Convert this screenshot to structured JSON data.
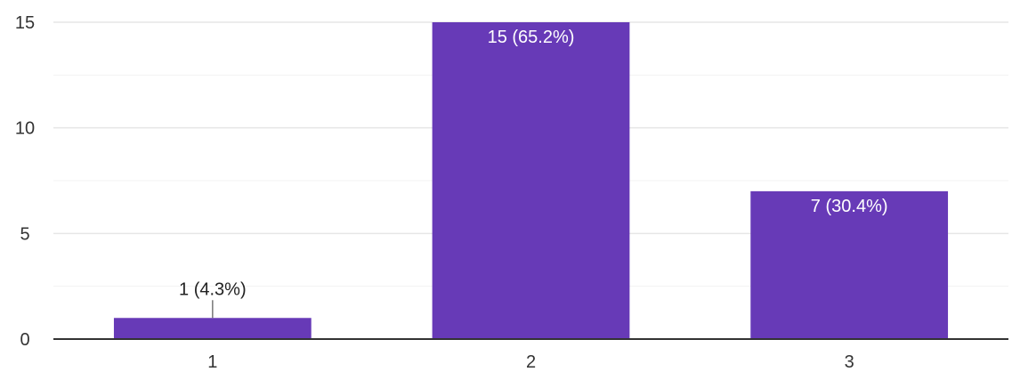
{
  "chart_data": {
    "type": "bar",
    "categories": [
      "1",
      "2",
      "3"
    ],
    "values": [
      1,
      15,
      7
    ],
    "data_labels": [
      "1 (4.3%)",
      "15 (65.2%)",
      "7 (30.4%)"
    ],
    "yticks": [
      "0",
      "5",
      "10",
      "15"
    ],
    "ylim": [
      0,
      15
    ],
    "grid": true,
    "bar_color": "#673ab7",
    "title": "",
    "xlabel": "",
    "ylabel": ""
  }
}
